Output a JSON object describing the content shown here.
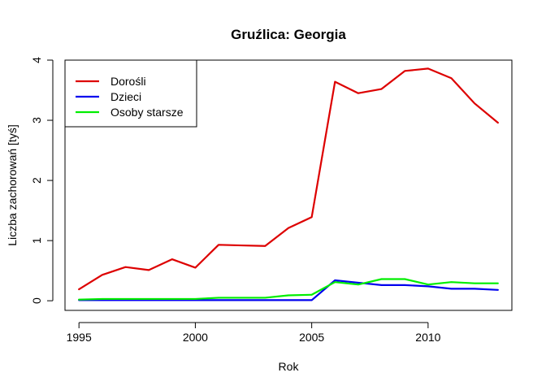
{
  "chart_data": {
    "type": "line",
    "title": "Gruźlica: Georgia",
    "xlabel": "Rok",
    "ylabel": "Liczba zachorowań [tyś]",
    "xlim": [
      1994.4,
      2013.6
    ],
    "ylim": [
      -0.16,
      4.0
    ],
    "x_ticks": [
      1995,
      2000,
      2005,
      2010
    ],
    "y_ticks": [
      0,
      1,
      2,
      3,
      4
    ],
    "grid": false,
    "legend_position": "top-left",
    "x": [
      1995,
      1996,
      1997,
      1998,
      1999,
      2000,
      2001,
      2002,
      2003,
      2004,
      2005,
      2006,
      2007,
      2008,
      2009,
      2010,
      2011,
      2012,
      2013
    ],
    "series": [
      {
        "name": "Dorośli",
        "color": "#dd0000",
        "values": [
          0.19,
          0.43,
          0.56,
          0.51,
          0.69,
          0.55,
          0.93,
          0.92,
          0.91,
          1.21,
          1.39,
          3.64,
          3.45,
          3.52,
          3.82,
          3.86,
          3.7,
          3.28,
          2.96
        ]
      },
      {
        "name": "Dzieci",
        "color": "#0000ee",
        "values": [
          0.01,
          0.01,
          0.01,
          0.01,
          0.01,
          0.01,
          0.01,
          0.01,
          0.01,
          0.01,
          0.01,
          0.34,
          0.3,
          0.26,
          0.26,
          0.24,
          0.2,
          0.2,
          0.18
        ]
      },
      {
        "name": "Osoby starsze",
        "color": "#00ee00",
        "values": [
          0.02,
          0.03,
          0.03,
          0.03,
          0.03,
          0.03,
          0.05,
          0.05,
          0.05,
          0.09,
          0.1,
          0.31,
          0.27,
          0.36,
          0.36,
          0.27,
          0.31,
          0.29,
          0.29
        ]
      }
    ]
  }
}
